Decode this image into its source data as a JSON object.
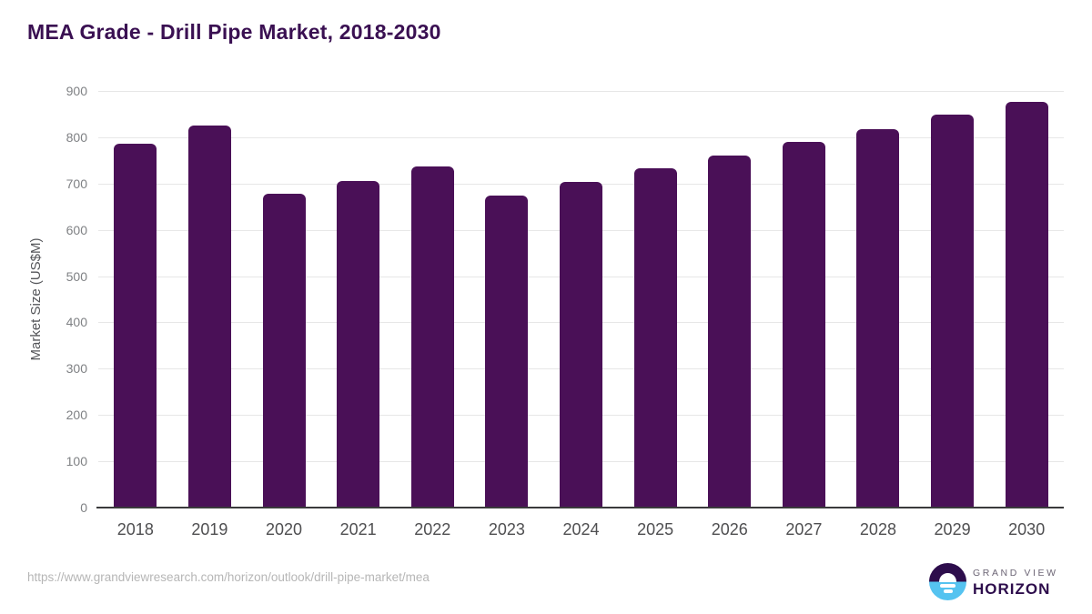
{
  "page": {
    "title": "MEA Grade - Drill Pipe Market, 2018-2030"
  },
  "chart_data": {
    "type": "bar",
    "title": "MEA Grade - Drill Pipe Market, 2018-2030",
    "categories": [
      "2018",
      "2019",
      "2020",
      "2021",
      "2022",
      "2023",
      "2024",
      "2025",
      "2026",
      "2027",
      "2028",
      "2029",
      "2030"
    ],
    "values": [
      786,
      825,
      677,
      706,
      736,
      675,
      703,
      732,
      760,
      789,
      817,
      848,
      877
    ],
    "xlabel": "",
    "ylabel": "Market Size (US$M)",
    "ylim": [
      0,
      900
    ],
    "ytick_step": 100,
    "grid": true,
    "legend": false,
    "bar_color": "#4A1057"
  },
  "footer": {
    "source_url": "https://www.grandviewresearch.com/horizon/outlook/drill-pipe-market/mea",
    "logo": {
      "line1": "GRAND VIEW",
      "line2": "HORIZON"
    }
  },
  "colors": {
    "title": "#3A1052",
    "bar": "#4A1057",
    "axis_line": "#3A3A3C",
    "gridline": "#E7E7E7",
    "ytick_label": "#7F8184",
    "xtick_label": "#4F4F51",
    "axis_title": "#55565A",
    "url_text": "#B6B6B6",
    "logo_purple": "#2D0D4C",
    "logo_blue": "#55C3F0",
    "logo_gray": "#6C6575"
  }
}
